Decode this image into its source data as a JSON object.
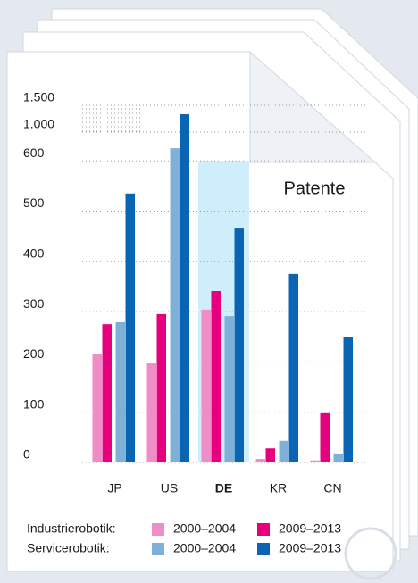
{
  "chart_data": {
    "type": "bar",
    "title": "Patente",
    "categories": [
      "JP",
      "US",
      "DE",
      "KR",
      "CN"
    ],
    "highlight": "DE",
    "series": [
      {
        "name": "2000–2004",
        "group": "Industrierobotik:",
        "color": "#f08cc8",
        "values": [
          215,
          197,
          304,
          7,
          4
        ]
      },
      {
        "name": "2009–2013",
        "group": "Industrierobotik:",
        "color": "#e6007e",
        "values": [
          275,
          295,
          341,
          28,
          98
        ]
      },
      {
        "name": "2000–2004",
        "group": "Servicerobotik:",
        "color": "#7fb0d8",
        "values": [
          279,
          775,
          291,
          43,
          18
        ]
      },
      {
        "name": "2009–2013",
        "group": "Servicerobotik:",
        "color": "#0a64b4",
        "values": [
          535,
          1333,
          467,
          375,
          249
        ]
      }
    ],
    "ylim": [
      0,
      1500
    ],
    "yticks": [
      0,
      100,
      200,
      300,
      400,
      500,
      600,
      {
        "value": 1000,
        "label": "1.000"
      },
      {
        "value": 1500,
        "label": "1.500"
      }
    ],
    "grid": true
  }
}
